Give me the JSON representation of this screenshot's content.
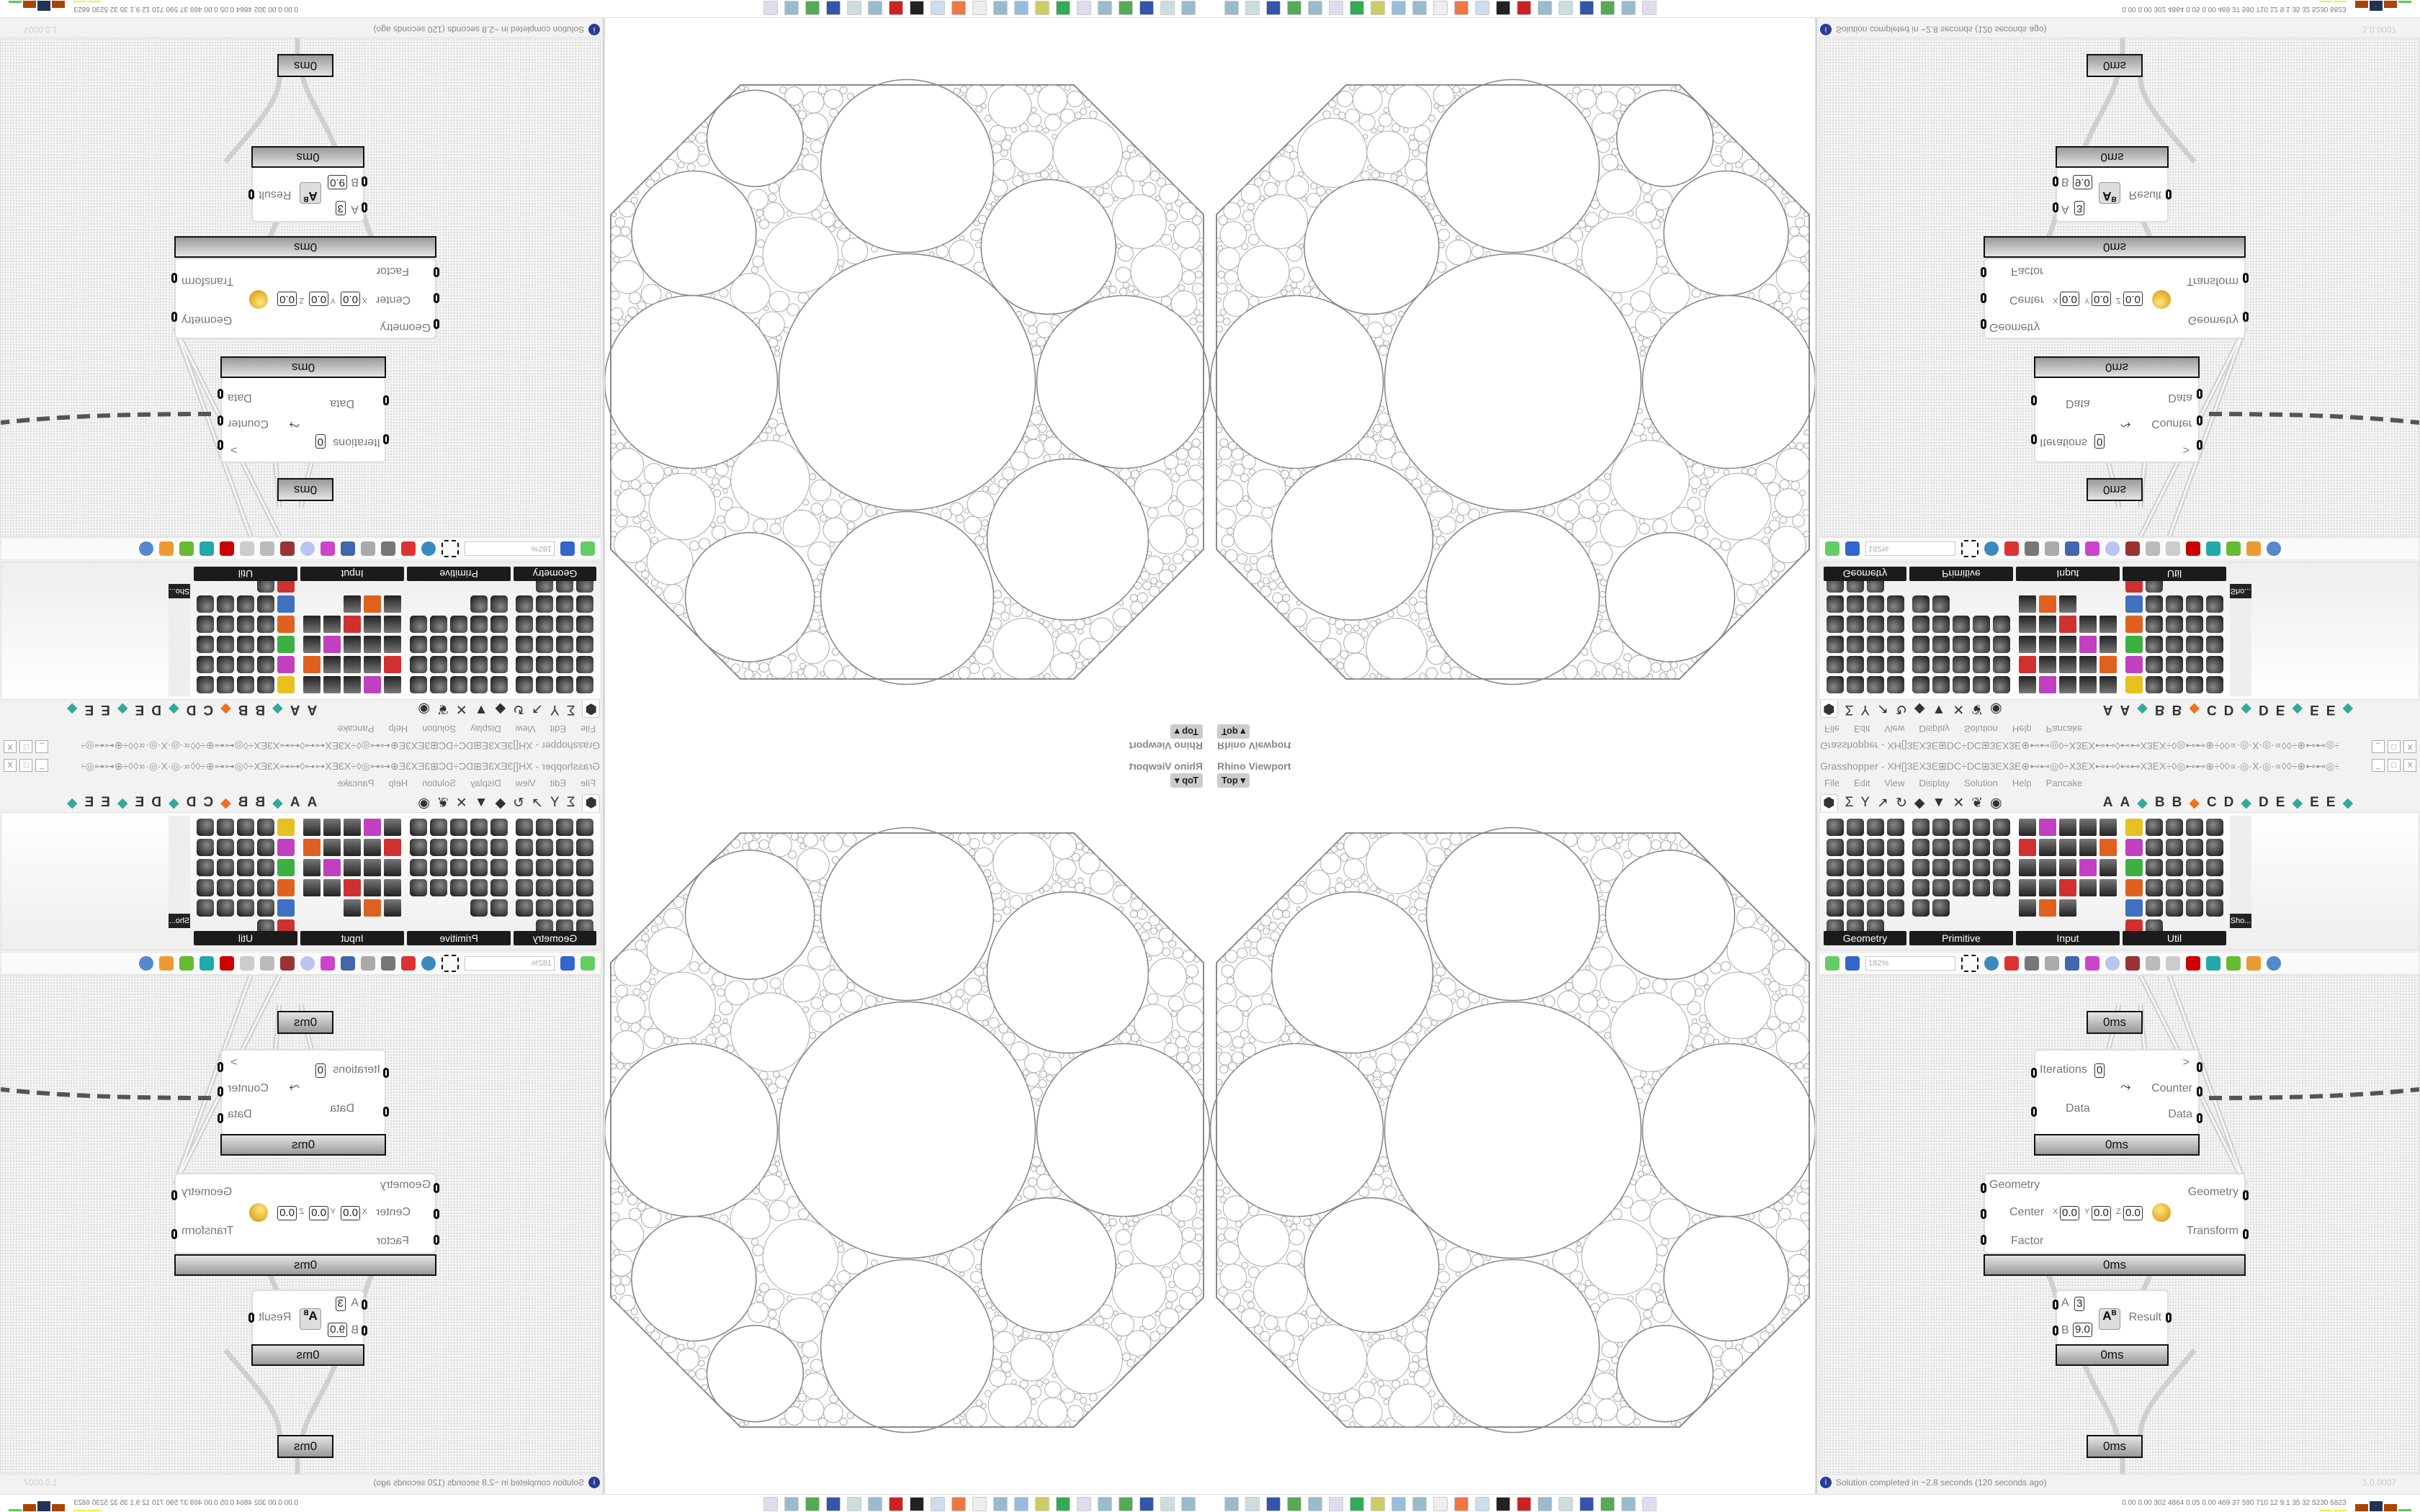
{
  "colors": {
    "accent": "#2a3a9a",
    "node_bar": "#9a9a9a",
    "canvas": "#f3f3f3",
    "geometry_stroke": "#9a9a9a"
  },
  "viewport": {
    "title": "Rhino Viewport",
    "view": "Top"
  },
  "grasshopper": {
    "title": "Grasshopper - XH[]3EX3E⊞DC÷DC⊞3EX3E⊕⊷⊷◎◊÷X3EX⊷⊷◊⊷⊷X3EX÷◊◎⊷⊷⊕÷◊◊∝·◎·X·◎·∝◊◊÷⊕⊷⊷◎÷◊⊷⊷3E[]3E⊷⊷◊÷◊⊷⊷⊕÷◊◊∝·◎·X·◎·∝◊◊÷⊕⊷⊷◎◊÷X3EX⊷⊷◊...",
    "menu": [
      "File",
      "Edit",
      "View",
      "Display",
      "Solution",
      "Help",
      "Pancake"
    ],
    "tab_icons": [
      "params-icon",
      "maths-icon",
      "sets-icon",
      "vector-icon",
      "curve-icon",
      "surface-icon",
      "mesh-icon",
      "intersect-icon",
      "transform-icon",
      "display-icon"
    ],
    "tab_letters": [
      "A",
      "A",
      "B",
      "B",
      "C",
      "D",
      "D",
      "E",
      "E",
      "E"
    ],
    "panels": [
      {
        "label": "Geometry"
      },
      {
        "label": "Primitive"
      },
      {
        "label": "Input"
      },
      {
        "label": "Util"
      }
    ],
    "sho_label": "Sho...",
    "zoom": "182%",
    "nodes": {
      "top_time": "0ms",
      "counter": {
        "iterations_label": "Iterations",
        "iterations_value": "0",
        "data_in": "Data",
        "next": ">",
        "counter": "Counter",
        "data_out": "Data",
        "time": "0ms"
      },
      "scale": {
        "geometry_in": "Geometry",
        "center": "Center",
        "x": "X",
        "y": "Y",
        "z": "Z",
        "x_val": "0.0",
        "y_val": "0.0",
        "z_val": "0.0",
        "factor": "Factor",
        "geometry_out": "Geometry",
        "transform": "Transform",
        "time": "0ms"
      },
      "power": {
        "a": "A",
        "a_val": "3",
        "b": "B",
        "b_val": "9.0",
        "result": "Result",
        "time": "0ms"
      },
      "bottom_time": "0ms"
    },
    "status": "Solution completed in ~2.8 seconds (120 seconds ago)",
    "version": "1.0.0007"
  },
  "taskbar": {
    "tray": "0.00 0.00 302 4864 0.05 0.00 469 37 590 710 12 9.1 35 32 5230 6823"
  }
}
